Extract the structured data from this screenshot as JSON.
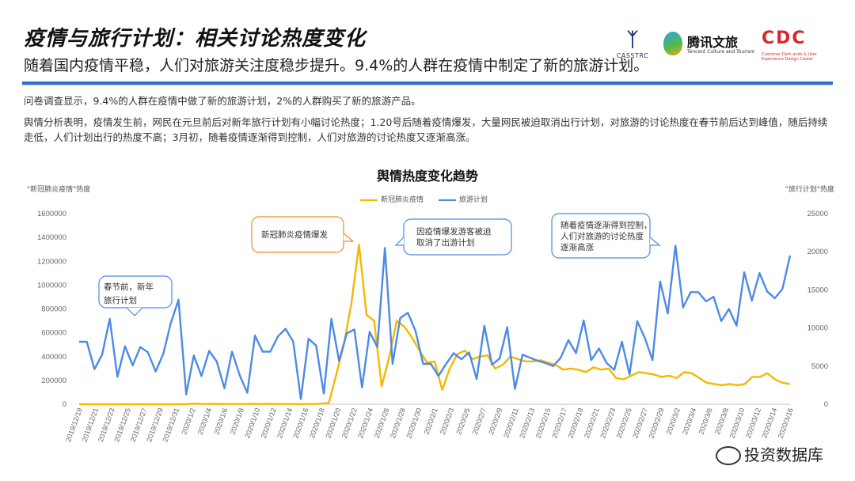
{
  "header": {
    "title": "疫情与旅行计划：相关讨论热度变化",
    "subtitle": "随着国内疫情平稳，人们对旅游关注度稳步提升。9.4%的人群在疫情中制定了新的旅游计划。"
  },
  "logos": {
    "casstrc": "CASSTRC",
    "tencent": "腾讯文旅",
    "tencent_sub": "Tencent Culture and Tourism",
    "cdc": "CDC",
    "cdc_sub": "Customer Dem ands & User Experience Design Center"
  },
  "notes": {
    "survey": "问卷调查显示，9.4%的人群在疫情中做了新的旅游计划，2%的人群购买了新的旅游产品。",
    "analysis": "舆情分析表明，疫情发生前，网民在元旦前后对新年旅行计划有小幅讨论热度；1.20号后随着疫情爆发，大量网民被迫取消出行计划，对旅游的讨论热度在春节前后达到峰值，随后持续走低，人们计划出行的热度不高；3月初，随着疫情逐渐得到控制，人们对旅游的讨论热度又逐渐高涨。"
  },
  "watermark": "投资数据库",
  "chart_data": {
    "type": "line",
    "title": "舆情热度变化趋势",
    "left_axis_label": "\"新冠肺炎疫情\"热度",
    "right_axis_label": "\"旅行计划\"热度",
    "left_ylim": [
      0,
      1600000
    ],
    "left_ticks": [
      "0",
      "200000",
      "400000",
      "600000",
      "800000",
      "1000000",
      "1200000",
      "1400000",
      "1600000"
    ],
    "right_ylim": [
      0,
      25000
    ],
    "right_ticks": [
      "0",
      "5000",
      "10000",
      "15000",
      "20000",
      "25000"
    ],
    "x_tick_labels": [
      "2019/12/19",
      "2019/12/21",
      "2019/12/23",
      "2019/12/25",
      "2019/12/27",
      "2019/12/29",
      "2019/12/31",
      "2020/1/2",
      "2020/1/4",
      "2020/1/6",
      "2020/1/8",
      "2020/1/10",
      "2020/1/12",
      "2020/1/14",
      "2020/1/16",
      "2020/1/18",
      "2020/1/20",
      "2020/1/22",
      "2020/1/24",
      "2020/1/26",
      "2020/1/28",
      "2020/1/30",
      "2020/2/1",
      "2020/2/3",
      "2020/2/5",
      "2020/2/7",
      "2020/2/9",
      "2020/2/11",
      "2020/2/13",
      "2020/2/15",
      "2020/2/17",
      "2020/2/19",
      "2020/2/21",
      "2020/2/23",
      "2020/2/25",
      "2020/2/27",
      "2020/2/29",
      "2020/3/2",
      "2020/3/4",
      "2020/3/6",
      "2020/3/8",
      "2020/3/10",
      "2020/3/12",
      "2020/3/14",
      "2020/3/16"
    ],
    "series": [
      {
        "name": "新冠肺炎疫情",
        "axis": "left",
        "color": "#f5b800",
        "start_date": "2019-12-19",
        "values": [
          0,
          0,
          0,
          0,
          0,
          0,
          0,
          0,
          0,
          0,
          0,
          0,
          0,
          0,
          0,
          5000,
          3000,
          2000,
          3000,
          2000,
          2000,
          2000,
          2000,
          3000,
          2000,
          3000,
          2000,
          2000,
          2000,
          1000,
          2000,
          2000,
          5000,
          10000,
          250000,
          500000,
          850000,
          1340000,
          750000,
          700000,
          150000,
          400000,
          700000,
          650000,
          560000,
          450000,
          350000,
          360000,
          120000,
          300000,
          420000,
          450000,
          380000,
          400000,
          410000,
          300000,
          330000,
          400000,
          380000,
          360000,
          360000,
          370000,
          350000,
          330000,
          290000,
          300000,
          290000,
          270000,
          310000,
          290000,
          300000,
          220000,
          210000,
          240000,
          270000,
          260000,
          250000,
          230000,
          240000,
          220000,
          270000,
          260000,
          220000,
          180000,
          170000,
          160000,
          170000,
          160000,
          170000,
          230000,
          230000,
          260000,
          210000,
          180000,
          170000
        ]
      },
      {
        "name": "旅游计划",
        "axis": "right",
        "color": "#4d8ae8",
        "start_date": "2019-12-19",
        "values": [
          8200,
          8200,
          4600,
          6500,
          11200,
          3600,
          7600,
          5100,
          7500,
          6800,
          4300,
          6600,
          10700,
          13700,
          1300,
          6400,
          3700,
          7000,
          5600,
          2100,
          6900,
          3800,
          1500,
          9000,
          6900,
          6900,
          8900,
          9900,
          8200,
          700,
          8600,
          7700,
          1400,
          11200,
          5700,
          9300,
          9800,
          2200,
          9500,
          7500,
          20500,
          5300,
          11300,
          12000,
          9600,
          5300,
          5300,
          3700,
          5300,
          6700,
          5900,
          6800,
          3300,
          10300,
          5200,
          6000,
          10100,
          2000,
          6500,
          6100,
          5700,
          5400,
          5000,
          6100,
          8400,
          6700,
          11000,
          5800,
          7300,
          5400,
          4500,
          8200,
          3900,
          10900,
          8700,
          5800,
          16100,
          11900,
          20800,
          12700,
          14700,
          14700,
          13500,
          14100,
          10900,
          12500,
          10300,
          17300,
          13600,
          17200,
          14800,
          13900,
          15100,
          19500
        ]
      }
    ],
    "legend_position": "top-center",
    "annotations": [
      {
        "text": "春节前，新年旅行计划"
      },
      {
        "text": "新冠肺炎疫情爆发"
      },
      {
        "text": "因疫情爆发游客被迫取消了出游计划"
      },
      {
        "text": "随着疫情逐渐得到控制，人们对旅游的讨论热度逐渐高涨"
      }
    ]
  }
}
